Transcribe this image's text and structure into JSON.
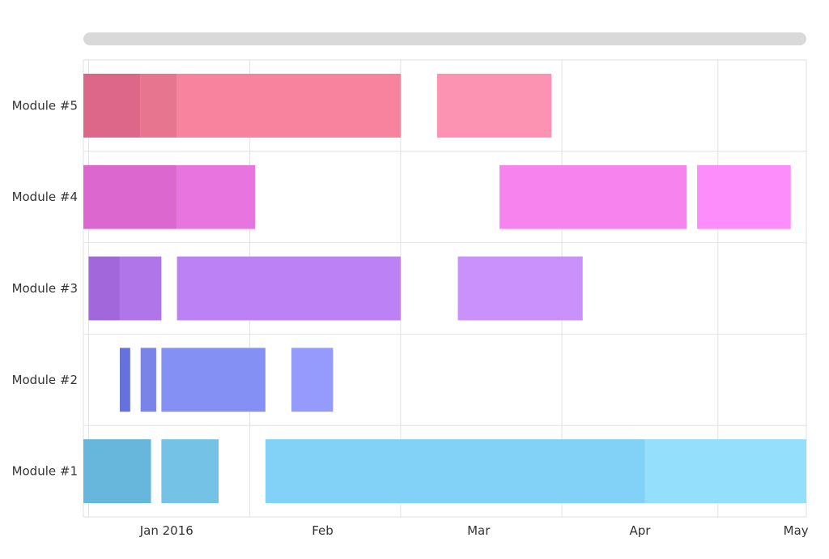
{
  "chart_data": {
    "type": "gantt",
    "x_axis": {
      "type": "date",
      "min": "2015-12-31",
      "max": "2016-05-18",
      "tick_labels": [
        {
          "label": "Jan 2016",
          "date": "2016-01-01"
        },
        {
          "label": "Feb",
          "date": "2016-02-01"
        },
        {
          "label": "Mar",
          "date": "2016-03-01"
        },
        {
          "label": "Apr",
          "date": "2016-04-01"
        },
        {
          "label": "May",
          "date": "2016-05-01"
        }
      ]
    },
    "grid": true,
    "categories": [
      "Module #1",
      "Module #2",
      "Module #3",
      "Module #4",
      "Module #5"
    ],
    "series": [
      {
        "category": "Module #1",
        "tasks": [
          {
            "start": "2015-12-31",
            "end": "2016-01-13",
            "color": "#67b7dc"
          },
          {
            "start": "2016-01-15",
            "end": "2016-01-26",
            "color": "#74c2e6"
          },
          {
            "start": "2016-02-04",
            "end": "2016-04-17",
            "color": "#82d2f7"
          },
          {
            "start": "2016-04-17",
            "end": "2016-05-18",
            "color": "#94e0fc"
          }
        ]
      },
      {
        "category": "Module #2",
        "tasks": [
          {
            "start": "2016-01-07",
            "end": "2016-01-09",
            "color": "#6771dc"
          },
          {
            "start": "2016-01-11",
            "end": "2016-01-14",
            "color": "#7a84e8"
          },
          {
            "start": "2016-01-15",
            "end": "2016-02-04",
            "color": "#8590f5"
          },
          {
            "start": "2016-02-09",
            "end": "2016-02-17",
            "color": "#949bfc"
          }
        ]
      },
      {
        "category": "Module #3",
        "tasks": [
          {
            "start": "2016-01-01",
            "end": "2016-01-07",
            "color": "#a367dc"
          },
          {
            "start": "2016-01-07",
            "end": "2016-01-15",
            "color": "#b075e8"
          },
          {
            "start": "2016-01-18",
            "end": "2016-03-01",
            "color": "#bc82f5"
          },
          {
            "start": "2016-03-12",
            "end": "2016-04-05",
            "color": "#ca91fc"
          }
        ]
      },
      {
        "category": "Module #4",
        "tasks": [
          {
            "start": "2015-12-31",
            "end": "2016-01-18",
            "color": "#dc67ce"
          },
          {
            "start": "2016-01-18",
            "end": "2016-02-02",
            "color": "#e875df"
          },
          {
            "start": "2016-03-20",
            "end": "2016-04-25",
            "color": "#f783ee"
          },
          {
            "start": "2016-04-27",
            "end": "2016-05-15",
            "color": "#fc8dfa"
          }
        ]
      },
      {
        "category": "Module #5",
        "tasks": [
          {
            "start": "2015-12-31",
            "end": "2016-01-11",
            "color": "#dc6788"
          },
          {
            "start": "2016-01-11",
            "end": "2016-01-18",
            "color": "#e8758f"
          },
          {
            "start": "2016-01-18",
            "end": "2016-03-01",
            "color": "#f7839f"
          },
          {
            "start": "2016-03-08",
            "end": "2016-03-30",
            "color": "#fc93b2"
          }
        ]
      }
    ],
    "scrollbar": true
  }
}
